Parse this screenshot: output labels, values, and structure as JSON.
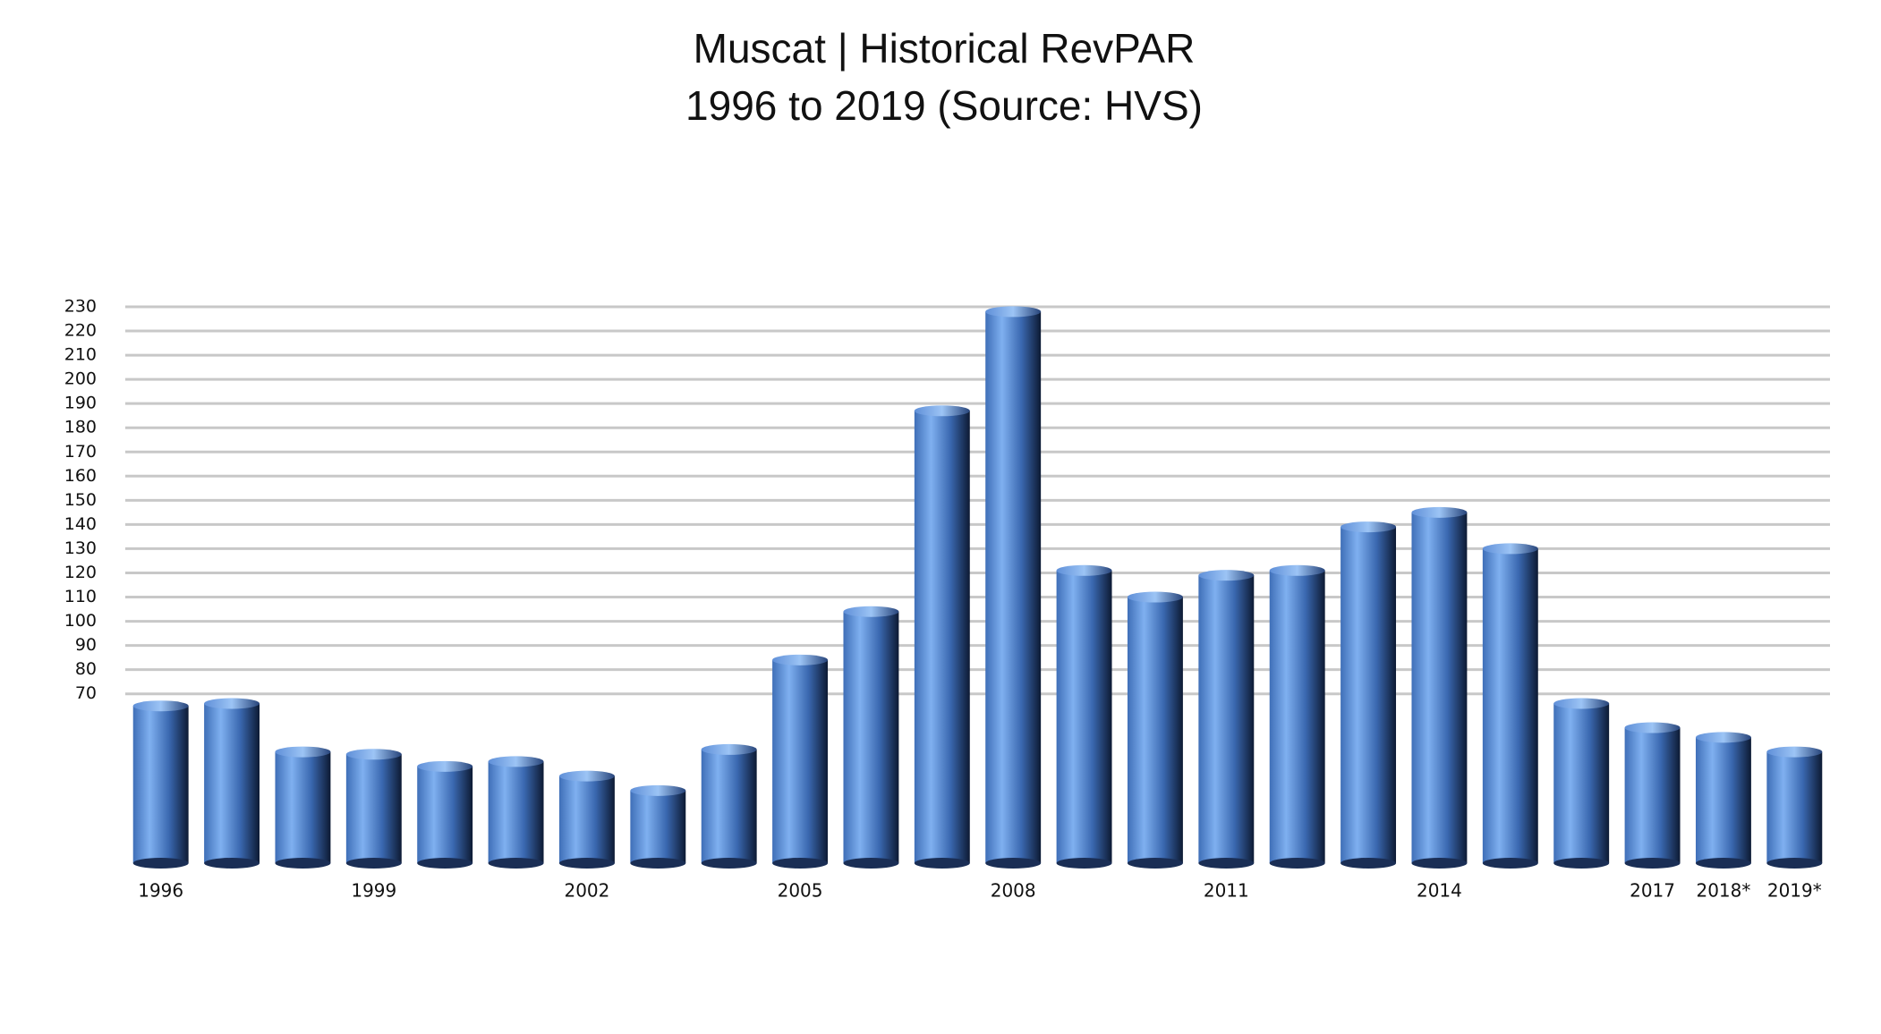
{
  "chart_data": {
    "type": "bar",
    "title": "Muscat | Historical RevPAR",
    "subtitle": "1996 to 2019 (Source: HVS)",
    "categories": [
      "1996",
      null,
      null,
      "1999",
      null,
      null,
      "2002",
      null,
      null,
      "2005",
      null,
      null,
      "2008",
      null,
      null,
      "2011",
      null,
      null,
      "2014",
      null,
      null,
      "2017",
      "2018*",
      "2019*"
    ],
    "values": [
      65,
      66,
      46,
      45,
      40,
      42,
      36,
      30,
      47,
      84,
      104,
      187,
      228,
      121,
      110,
      119,
      121,
      139,
      145,
      130,
      66,
      56,
      52,
      46
    ],
    "color": "#4a7fd0",
    "ylim": [
      0,
      230
    ],
    "yticks": [
      70,
      80,
      90,
      100,
      110,
      120,
      130,
      140,
      150,
      160,
      170,
      180,
      190,
      200,
      210,
      220,
      230
    ],
    "grid": true
  }
}
